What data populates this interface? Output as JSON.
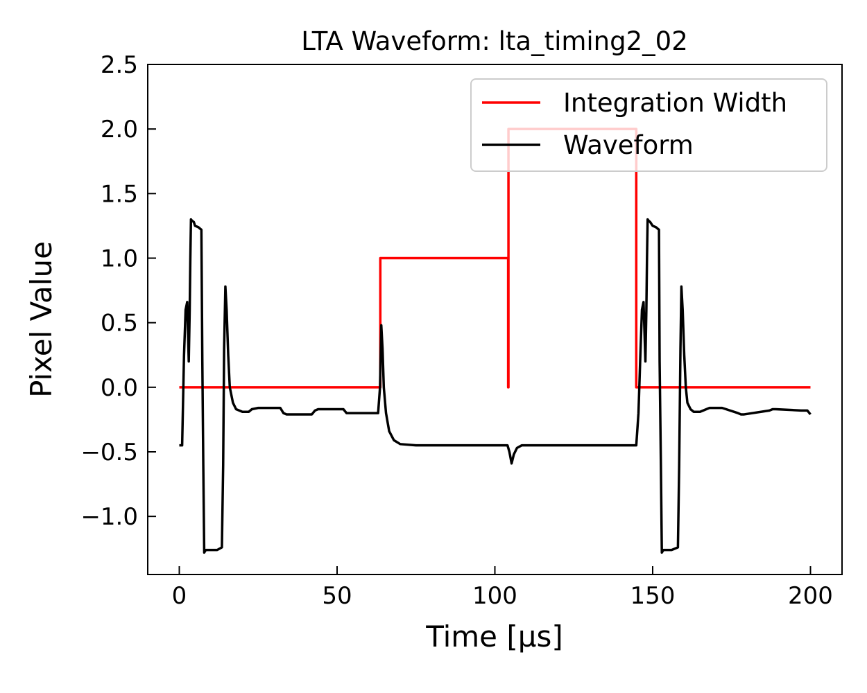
{
  "chart_data": {
    "type": "line",
    "title": "LTA Waveform: lta_timing2_02",
    "xlabel": "Time [μs]",
    "ylabel": "Pixel Value",
    "xlim": [
      -10,
      210
    ],
    "ylim": [
      -1.45,
      2.5
    ],
    "x_ticks": [
      0,
      50,
      100,
      150,
      200
    ],
    "x_tick_labels": [
      "0",
      "50",
      "100",
      "150",
      "200"
    ],
    "y_ticks": [
      -1.0,
      -0.5,
      0.0,
      0.5,
      1.0,
      1.5,
      2.0,
      2.5
    ],
    "y_tick_labels": [
      "−1.0",
      "−0.5",
      "0.0",
      "0.5",
      "1.0",
      "1.5",
      "2.0",
      "2.5"
    ],
    "grid": false,
    "legend_position": "top-right",
    "series": [
      {
        "name": "Integration Width",
        "color": "#ff0000",
        "x": [
          0,
          63.7,
          63.7,
          104.2,
          104.2,
          104.3,
          104.3,
          144.8,
          144.8,
          200
        ],
        "y": [
          0,
          0,
          1.0,
          1.0,
          0,
          0,
          2.0,
          2.0,
          0,
          0
        ]
      },
      {
        "name": "Waveform",
        "color": "#000000",
        "x": [
          0,
          0.9,
          1.5,
          2.0,
          2.5,
          3.0,
          3.3,
          3.5,
          3.7,
          4.0,
          4.6,
          5.0,
          6.0,
          7.0,
          7.3,
          7.6,
          7.9,
          8.4,
          9.0,
          10.0,
          12.0,
          13.5,
          13.9,
          14.2,
          14.6,
          15.0,
          15.5,
          16.0,
          17.0,
          18.0,
          20.0,
          22.0,
          23.0,
          25.0,
          27.0,
          32.0,
          33.0,
          34.0,
          42.0,
          43.0,
          44.0,
          52.0,
          53.0,
          54.0,
          62.0,
          63.0,
          63.6,
          64.0,
          64.4,
          64.8,
          65.5,
          66.5,
          68.0,
          70.0,
          75.0,
          85.0,
          95.0,
          104.0,
          104.6,
          105.3,
          106.0,
          107.0,
          108.5,
          110.0,
          120.0,
          130.0,
          144.0,
          144.8,
          145.5,
          146.1,
          146.6,
          147.1,
          147.7,
          148.0,
          148.2,
          148.4,
          148.7,
          149.2,
          150.0,
          151.0,
          152.0,
          152.2,
          152.6,
          152.9,
          153.4,
          154.0,
          156.0,
          158.0,
          158.4,
          158.8,
          159.1,
          159.5,
          160.0,
          160.5,
          161.0,
          162.0,
          163.0,
          165.0,
          167.0,
          168.0,
          170.0,
          172.0,
          177.0,
          178.0,
          179.0,
          187.0,
          188.0,
          189.0,
          197.0,
          199.0,
          200.0
        ],
        "y": [
          -0.45,
          -0.45,
          0.25,
          0.6,
          0.66,
          0.2,
          0.6,
          1.0,
          1.3,
          1.29,
          1.28,
          1.25,
          1.24,
          1.22,
          0.2,
          -0.6,
          -1.28,
          -1.26,
          -1.26,
          -1.26,
          -1.26,
          -1.24,
          -0.6,
          0.3,
          0.78,
          0.6,
          0.25,
          0.0,
          -0.12,
          -0.17,
          -0.19,
          -0.19,
          -0.17,
          -0.16,
          -0.16,
          -0.16,
          -0.2,
          -0.21,
          -0.21,
          -0.18,
          -0.17,
          -0.17,
          -0.2,
          -0.2,
          -0.2,
          -0.2,
          0.0,
          0.48,
          0.3,
          0.0,
          -0.2,
          -0.34,
          -0.41,
          -0.44,
          -0.45,
          -0.45,
          -0.45,
          -0.45,
          -0.5,
          -0.59,
          -0.52,
          -0.47,
          -0.45,
          -0.45,
          -0.45,
          -0.45,
          -0.45,
          -0.45,
          -0.2,
          0.25,
          0.6,
          0.66,
          0.2,
          0.6,
          1.0,
          1.3,
          1.29,
          1.28,
          1.25,
          1.24,
          1.22,
          0.2,
          -0.6,
          -1.28,
          -1.26,
          -1.26,
          -1.26,
          -1.24,
          -0.6,
          0.3,
          0.78,
          0.6,
          0.25,
          0.0,
          -0.12,
          -0.17,
          -0.19,
          -0.19,
          -0.17,
          -0.16,
          -0.16,
          -0.16,
          -0.2,
          -0.21,
          -0.21,
          -0.18,
          -0.17,
          -0.17,
          -0.18,
          -0.18,
          -0.21
        ]
      }
    ]
  }
}
